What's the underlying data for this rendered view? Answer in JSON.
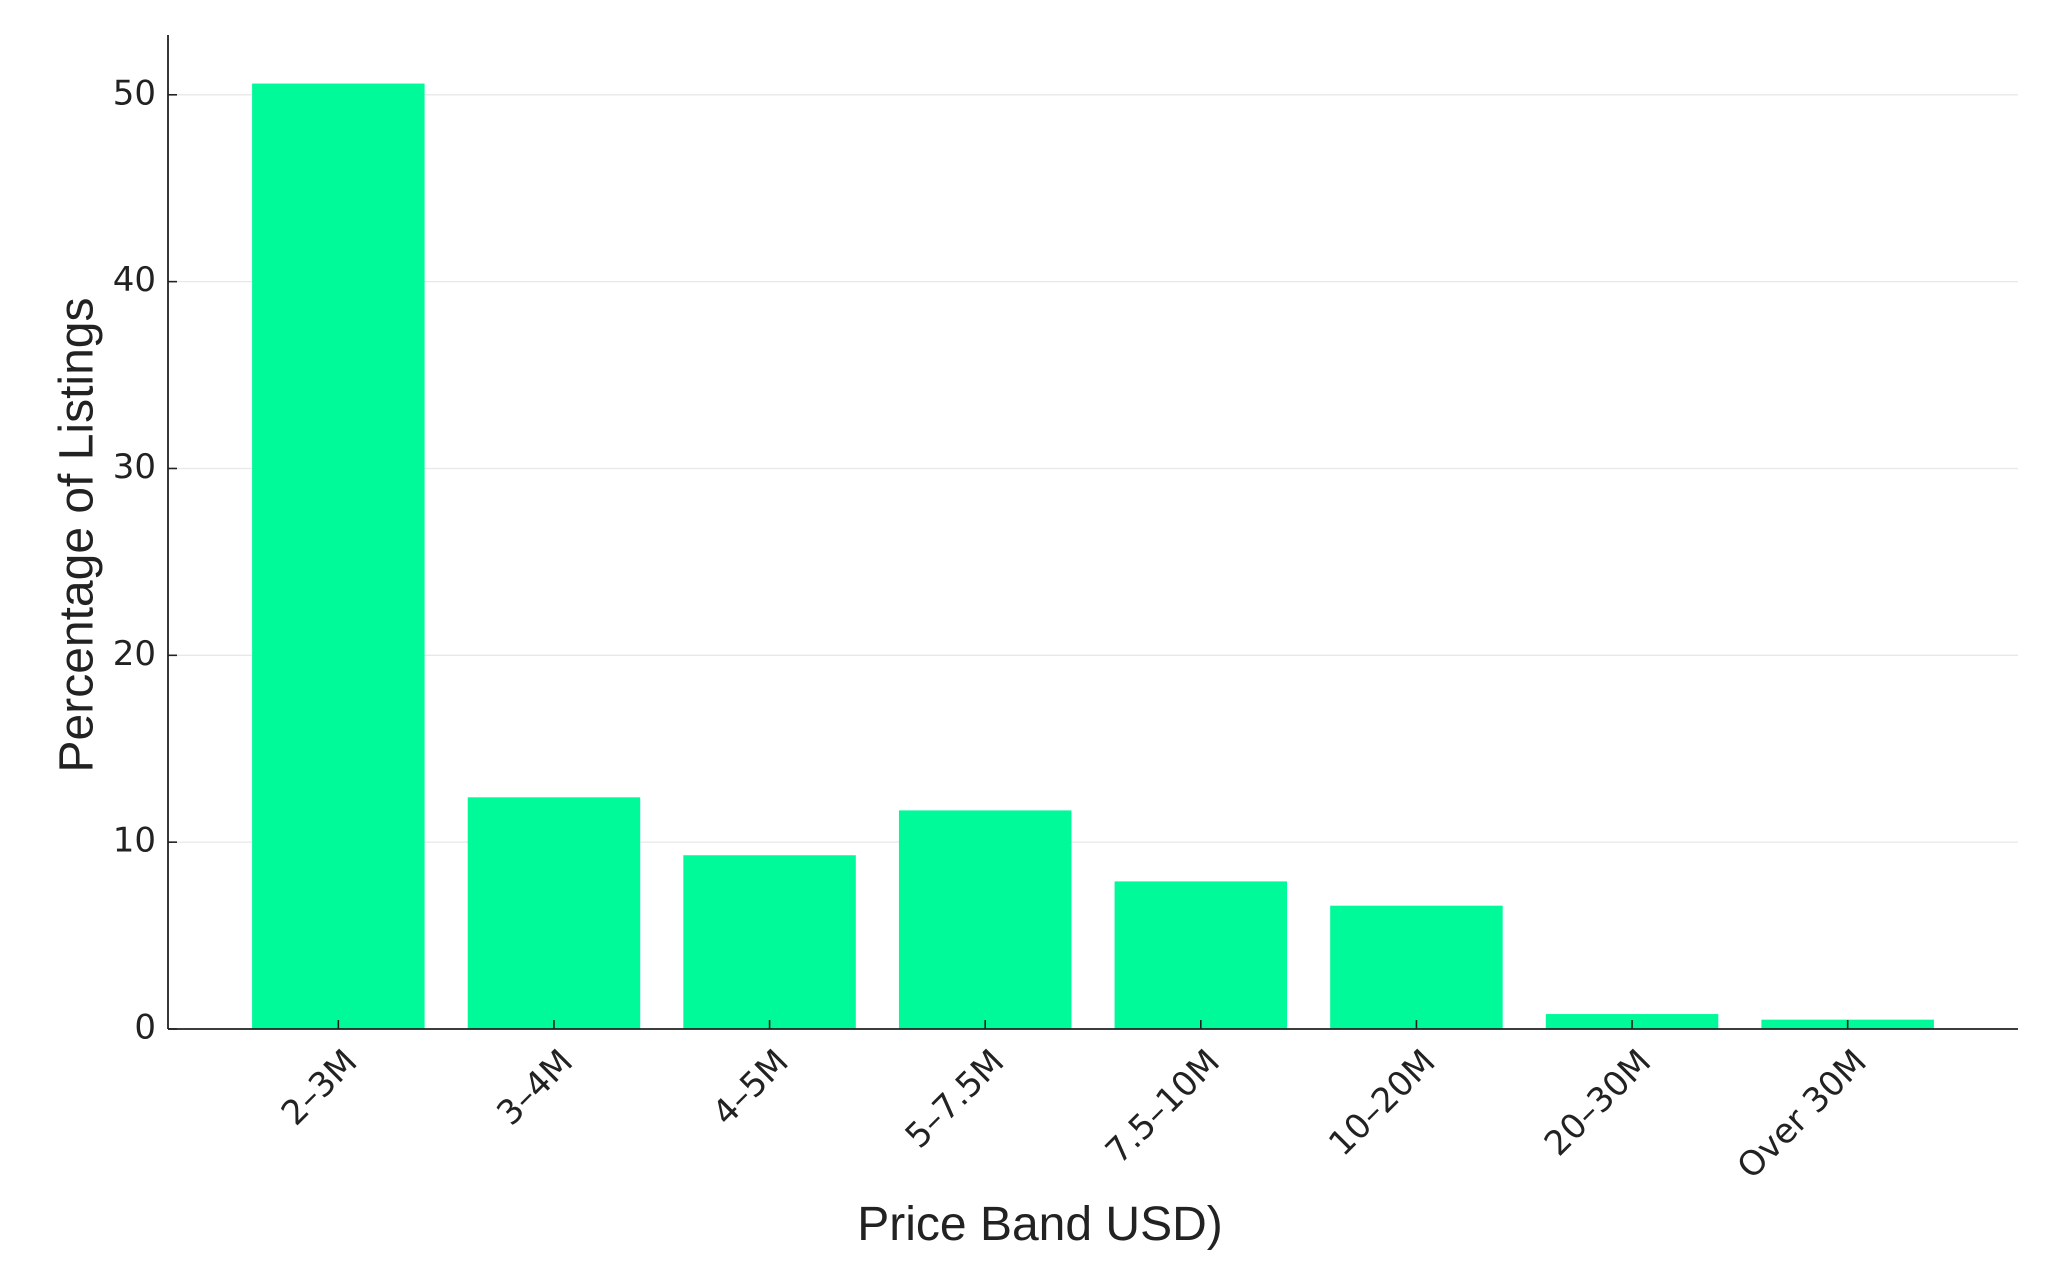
{
  "chart_data": {
    "type": "bar",
    "x_label": "Price Band USD)",
    "y_label": "Percentage of Listings",
    "categories": [
      "2–3M",
      "3–4M",
      "4–5M",
      "5–7.5M",
      "7.5–10M",
      "10–20M",
      "20–30M",
      "Over 30M"
    ],
    "values": [
      50.6,
      12.4,
      9.3,
      11.7,
      7.9,
      6.6,
      0.8,
      0.5
    ],
    "color": "#00fa9a",
    "ylim": [
      0,
      53.2
    ],
    "yticks": [
      0,
      10,
      20,
      30,
      40,
      50
    ],
    "grid": true
  }
}
